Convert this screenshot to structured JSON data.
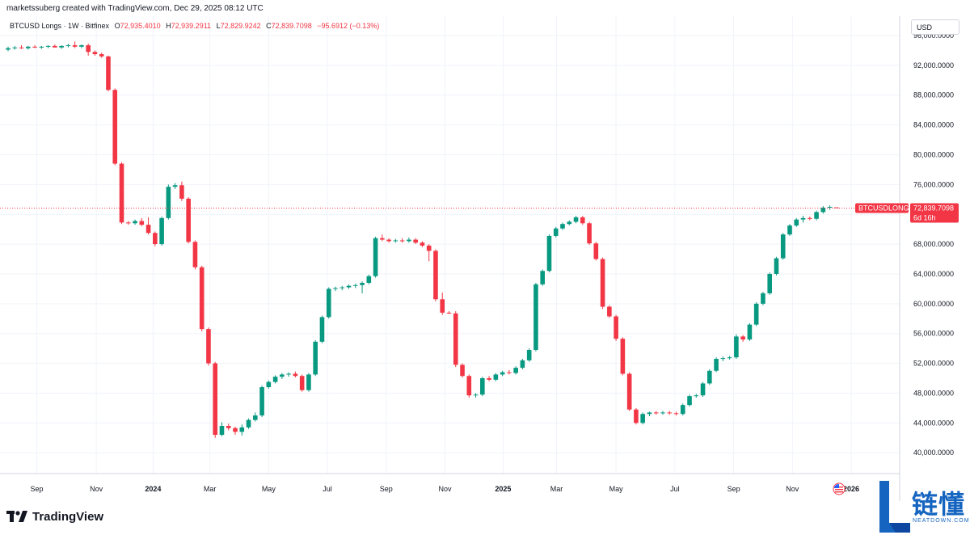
{
  "header": {
    "attribution": "marketssuberg created with TradingView.com, Dec 29, 2025 08:12 UTC"
  },
  "legend": {
    "symbol": "BTCUSD Longs · 1W · Bitfinex",
    "open_label": "O",
    "open": "72,935.4010",
    "high_label": "H",
    "high": "72,939.2911",
    "low_label": "L",
    "low": "72,829.9242",
    "close_label": "C",
    "close": "72,839.7098",
    "change": "−95.6912 (−0.13%)"
  },
  "currency": "USD",
  "price_tag": {
    "symbol": "BTCUSDLONGS",
    "value": "72,839.7098",
    "countdown": "6d 16h"
  },
  "footer": {
    "brand": "TradingView"
  },
  "watermark": {
    "chinese": "链懂",
    "english": "NEATDOWN.COM"
  },
  "colors": {
    "up": "#089981",
    "down": "#f23645",
    "grid": "#f0f3fa",
    "text": "#131722"
  },
  "chart_data": {
    "type": "candlestick",
    "interval": "1W",
    "y_ticks": [
      40000,
      44000,
      48000,
      52000,
      56000,
      60000,
      64000,
      68000,
      72000,
      76000,
      80000,
      84000,
      88000,
      92000,
      96000
    ],
    "y_tick_labels": [
      "40,000.0000",
      "44,000.0000",
      "48,000.0000",
      "52,000.0000",
      "56,000.0000",
      "60,000.0000",
      "64,000.0000",
      "68,000.0000",
      "72,000.0000",
      "76,000.0000",
      "80,000.0000",
      "84,000.0000",
      "88,000.0000",
      "92,000.0000",
      "96,000.0000"
    ],
    "ylim": [
      37200,
      98600
    ],
    "x_labels": [
      {
        "label": "Sep",
        "index": 4.3,
        "bold": false
      },
      {
        "label": "Nov",
        "index": 13.2,
        "bold": false
      },
      {
        "label": "2024",
        "index": 21.7,
        "bold": true
      },
      {
        "label": "Mar",
        "index": 30.2,
        "bold": false
      },
      {
        "label": "May",
        "index": 39.0,
        "bold": false
      },
      {
        "label": "Jul",
        "index": 47.8,
        "bold": false
      },
      {
        "label": "Sep",
        "index": 56.6,
        "bold": false
      },
      {
        "label": "Nov",
        "index": 65.4,
        "bold": false
      },
      {
        "label": "2025",
        "index": 74.1,
        "bold": true
      },
      {
        "label": "Mar",
        "index": 82.1,
        "bold": false
      },
      {
        "label": "May",
        "index": 91.0,
        "bold": false
      },
      {
        "label": "Jul",
        "index": 99.8,
        "bold": false
      },
      {
        "label": "Sep",
        "index": 108.6,
        "bold": false
      },
      {
        "label": "Nov",
        "index": 117.4,
        "bold": false
      },
      {
        "label": "2026",
        "index": 126.2,
        "bold": true
      }
    ],
    "last_price": 72839.7098,
    "candles": [
      {
        "o": 94100,
        "h": 94500,
        "l": 93900,
        "c": 94300
      },
      {
        "o": 94300,
        "h": 94600,
        "l": 94100,
        "c": 94400
      },
      {
        "o": 94400,
        "h": 94700,
        "l": 94200,
        "c": 94300
      },
      {
        "o": 94300,
        "h": 94600,
        "l": 94100,
        "c": 94500
      },
      {
        "o": 94500,
        "h": 94700,
        "l": 94300,
        "c": 94400
      },
      {
        "o": 94400,
        "h": 94600,
        "l": 94200,
        "c": 94500
      },
      {
        "o": 94500,
        "h": 94700,
        "l": 94300,
        "c": 94600
      },
      {
        "o": 94600,
        "h": 94800,
        "l": 94400,
        "c": 94400
      },
      {
        "o": 94400,
        "h": 94700,
        "l": 94200,
        "c": 94600
      },
      {
        "o": 94600,
        "h": 94900,
        "l": 94400,
        "c": 94700
      },
      {
        "o": 94700,
        "h": 95200,
        "l": 94300,
        "c": 94500
      },
      {
        "o": 94500,
        "h": 94800,
        "l": 94300,
        "c": 94700
      },
      {
        "o": 94700,
        "h": 94900,
        "l": 93300,
        "c": 93800
      },
      {
        "o": 93800,
        "h": 94000,
        "l": 93300,
        "c": 93500
      },
      {
        "o": 93500,
        "h": 93700,
        "l": 93000,
        "c": 93200
      },
      {
        "o": 93200,
        "h": 93300,
        "l": 88500,
        "c": 88700
      },
      {
        "o": 88700,
        "h": 88900,
        "l": 78600,
        "c": 78800
      },
      {
        "o": 78800,
        "h": 79000,
        "l": 70700,
        "c": 70900
      },
      {
        "o": 70900,
        "h": 71100,
        "l": 70600,
        "c": 70800
      },
      {
        "o": 70800,
        "h": 71300,
        "l": 70600,
        "c": 71100
      },
      {
        "o": 71100,
        "h": 71500,
        "l": 70400,
        "c": 70600
      },
      {
        "o": 70600,
        "h": 71600,
        "l": 69300,
        "c": 69500
      },
      {
        "o": 69500,
        "h": 69700,
        "l": 67700,
        "c": 68000
      },
      {
        "o": 68000,
        "h": 71700,
        "l": 67800,
        "c": 71500
      },
      {
        "o": 71500,
        "h": 76000,
        "l": 71300,
        "c": 75700
      },
      {
        "o": 75700,
        "h": 76200,
        "l": 75400,
        "c": 75900
      },
      {
        "o": 75900,
        "h": 76400,
        "l": 73800,
        "c": 74100
      },
      {
        "o": 74100,
        "h": 74300,
        "l": 68100,
        "c": 68300
      },
      {
        "o": 68300,
        "h": 68500,
        "l": 64600,
        "c": 64900
      },
      {
        "o": 64900,
        "h": 65100,
        "l": 56300,
        "c": 56600
      },
      {
        "o": 56600,
        "h": 56800,
        "l": 51700,
        "c": 52000
      },
      {
        "o": 52000,
        "h": 52200,
        "l": 42000,
        "c": 42400
      },
      {
        "o": 42400,
        "h": 44100,
        "l": 42200,
        "c": 43600
      },
      {
        "o": 43600,
        "h": 43900,
        "l": 43000,
        "c": 43300
      },
      {
        "o": 43300,
        "h": 43500,
        "l": 42400,
        "c": 42800
      },
      {
        "o": 42800,
        "h": 43800,
        "l": 42300,
        "c": 43400
      },
      {
        "o": 43400,
        "h": 44600,
        "l": 43200,
        "c": 44400
      },
      {
        "o": 44400,
        "h": 45400,
        "l": 44200,
        "c": 45000
      },
      {
        "o": 45000,
        "h": 49000,
        "l": 44800,
        "c": 48800
      },
      {
        "o": 48800,
        "h": 49700,
        "l": 48600,
        "c": 49500
      },
      {
        "o": 49500,
        "h": 50400,
        "l": 49300,
        "c": 50200
      },
      {
        "o": 50200,
        "h": 50700,
        "l": 49900,
        "c": 50500
      },
      {
        "o": 50500,
        "h": 50800,
        "l": 50200,
        "c": 50600
      },
      {
        "o": 50600,
        "h": 50900,
        "l": 50100,
        "c": 50300
      },
      {
        "o": 50300,
        "h": 50500,
        "l": 48200,
        "c": 48400
      },
      {
        "o": 48400,
        "h": 50700,
        "l": 48200,
        "c": 50500
      },
      {
        "o": 50500,
        "h": 55100,
        "l": 50300,
        "c": 54900
      },
      {
        "o": 54900,
        "h": 58400,
        "l": 54700,
        "c": 58200
      },
      {
        "o": 58200,
        "h": 62200,
        "l": 58000,
        "c": 62000
      },
      {
        "o": 62000,
        "h": 62300,
        "l": 61700,
        "c": 62100
      },
      {
        "o": 62100,
        "h": 62400,
        "l": 61800,
        "c": 62200
      },
      {
        "o": 62200,
        "h": 62600,
        "l": 62000,
        "c": 62400
      },
      {
        "o": 62400,
        "h": 62700,
        "l": 62100,
        "c": 62500
      },
      {
        "o": 62500,
        "h": 63000,
        "l": 61400,
        "c": 62800
      },
      {
        "o": 62800,
        "h": 63900,
        "l": 62600,
        "c": 63700
      },
      {
        "o": 63700,
        "h": 69000,
        "l": 63500,
        "c": 68800
      },
      {
        "o": 68800,
        "h": 69300,
        "l": 68400,
        "c": 68600
      },
      {
        "o": 68600,
        "h": 68800,
        "l": 68200,
        "c": 68400
      },
      {
        "o": 68400,
        "h": 68700,
        "l": 68200,
        "c": 68500
      },
      {
        "o": 68500,
        "h": 68800,
        "l": 68200,
        "c": 68400
      },
      {
        "o": 68400,
        "h": 68900,
        "l": 68200,
        "c": 68600
      },
      {
        "o": 68600,
        "h": 68800,
        "l": 68000,
        "c": 68200
      },
      {
        "o": 68200,
        "h": 68400,
        "l": 67600,
        "c": 67800
      },
      {
        "o": 67800,
        "h": 68000,
        "l": 65700,
        "c": 67100
      },
      {
        "o": 67100,
        "h": 67300,
        "l": 60300,
        "c": 60600
      },
      {
        "o": 60600,
        "h": 61500,
        "l": 58500,
        "c": 58800
      },
      {
        "o": 58800,
        "h": 59000,
        "l": 58600,
        "c": 58700
      },
      {
        "o": 58700,
        "h": 59000,
        "l": 51500,
        "c": 51800
      },
      {
        "o": 51800,
        "h": 52000,
        "l": 50100,
        "c": 50300
      },
      {
        "o": 50300,
        "h": 50500,
        "l": 47400,
        "c": 47700
      },
      {
        "o": 47700,
        "h": 48000,
        "l": 47400,
        "c": 47800
      },
      {
        "o": 47800,
        "h": 50200,
        "l": 47600,
        "c": 50000
      },
      {
        "o": 50000,
        "h": 50300,
        "l": 49600,
        "c": 49800
      },
      {
        "o": 49800,
        "h": 50700,
        "l": 49600,
        "c": 50500
      },
      {
        "o": 50500,
        "h": 51000,
        "l": 50300,
        "c": 50800
      },
      {
        "o": 50800,
        "h": 51100,
        "l": 50500,
        "c": 50700
      },
      {
        "o": 50700,
        "h": 51600,
        "l": 50500,
        "c": 51400
      },
      {
        "o": 51400,
        "h": 52600,
        "l": 51200,
        "c": 52400
      },
      {
        "o": 52400,
        "h": 54000,
        "l": 52200,
        "c": 53800
      },
      {
        "o": 53800,
        "h": 62800,
        "l": 53600,
        "c": 62600
      },
      {
        "o": 62600,
        "h": 64600,
        "l": 62400,
        "c": 64400
      },
      {
        "o": 64400,
        "h": 69300,
        "l": 64200,
        "c": 69100
      },
      {
        "o": 69100,
        "h": 70300,
        "l": 68900,
        "c": 70100
      },
      {
        "o": 70100,
        "h": 70900,
        "l": 69900,
        "c": 70700
      },
      {
        "o": 70700,
        "h": 71200,
        "l": 70500,
        "c": 71000
      },
      {
        "o": 71000,
        "h": 71800,
        "l": 70800,
        "c": 71600
      },
      {
        "o": 71600,
        "h": 71800,
        "l": 70600,
        "c": 70800
      },
      {
        "o": 70800,
        "h": 71000,
        "l": 67900,
        "c": 68100
      },
      {
        "o": 68100,
        "h": 68300,
        "l": 65800,
        "c": 66000
      },
      {
        "o": 66000,
        "h": 66200,
        "l": 59300,
        "c": 59600
      },
      {
        "o": 59600,
        "h": 59800,
        "l": 58100,
        "c": 58300
      },
      {
        "o": 58300,
        "h": 58500,
        "l": 55000,
        "c": 55300
      },
      {
        "o": 55300,
        "h": 55500,
        "l": 50400,
        "c": 50600
      },
      {
        "o": 50600,
        "h": 50800,
        "l": 45600,
        "c": 45800
      },
      {
        "o": 45800,
        "h": 46000,
        "l": 43800,
        "c": 44000
      },
      {
        "o": 44000,
        "h": 45400,
        "l": 43800,
        "c": 45200
      },
      {
        "o": 45200,
        "h": 45500,
        "l": 44900,
        "c": 45400
      },
      {
        "o": 45400,
        "h": 45600,
        "l": 45100,
        "c": 45300
      },
      {
        "o": 45300,
        "h": 45600,
        "l": 45100,
        "c": 45400
      },
      {
        "o": 45400,
        "h": 45600,
        "l": 45100,
        "c": 45300
      },
      {
        "o": 45300,
        "h": 45500,
        "l": 45000,
        "c": 45200
      },
      {
        "o": 45200,
        "h": 46600,
        "l": 45000,
        "c": 46400
      },
      {
        "o": 46400,
        "h": 47800,
        "l": 46200,
        "c": 47600
      },
      {
        "o": 47600,
        "h": 47900,
        "l": 47400,
        "c": 47700
      },
      {
        "o": 47700,
        "h": 49500,
        "l": 47500,
        "c": 49300
      },
      {
        "o": 49300,
        "h": 51200,
        "l": 49100,
        "c": 51000
      },
      {
        "o": 51000,
        "h": 52800,
        "l": 50800,
        "c": 52600
      },
      {
        "o": 52600,
        "h": 52900,
        "l": 52300,
        "c": 52700
      },
      {
        "o": 52700,
        "h": 53000,
        "l": 52500,
        "c": 52800
      },
      {
        "o": 52800,
        "h": 55900,
        "l": 52600,
        "c": 55600
      },
      {
        "o": 55600,
        "h": 55800,
        "l": 54900,
        "c": 55200
      },
      {
        "o": 55200,
        "h": 57400,
        "l": 55000,
        "c": 57200
      },
      {
        "o": 57200,
        "h": 60200,
        "l": 57000,
        "c": 60000
      },
      {
        "o": 60000,
        "h": 61600,
        "l": 59800,
        "c": 61400
      },
      {
        "o": 61400,
        "h": 64200,
        "l": 61200,
        "c": 64000
      },
      {
        "o": 64000,
        "h": 66300,
        "l": 63800,
        "c": 66100
      },
      {
        "o": 66100,
        "h": 69500,
        "l": 65900,
        "c": 69300
      },
      {
        "o": 69300,
        "h": 70700,
        "l": 69100,
        "c": 70500
      },
      {
        "o": 70500,
        "h": 71500,
        "l": 70300,
        "c": 71300
      },
      {
        "o": 71300,
        "h": 71800,
        "l": 70900,
        "c": 71500
      },
      {
        "o": 71500,
        "h": 71700,
        "l": 71200,
        "c": 71400
      },
      {
        "o": 71400,
        "h": 72500,
        "l": 71200,
        "c": 72300
      },
      {
        "o": 72300,
        "h": 73100,
        "l": 72100,
        "c": 72900
      },
      {
        "o": 72900,
        "h": 73200,
        "l": 72600,
        "c": 73000
      },
      {
        "o": 72935.401,
        "h": 72939.2911,
        "l": 72829.9242,
        "c": 72839.7098
      }
    ]
  }
}
